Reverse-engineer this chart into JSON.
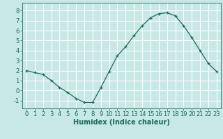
{
  "title": "",
  "xlabel": "Humidex (Indice chaleur)",
  "ylabel": "",
  "x": [
    0,
    1,
    2,
    3,
    4,
    5,
    6,
    7,
    8,
    9,
    10,
    11,
    12,
    13,
    14,
    15,
    16,
    17,
    18,
    19,
    20,
    21,
    22,
    23
  ],
  "y": [
    2.0,
    1.8,
    1.6,
    1.0,
    0.3,
    -0.2,
    -0.8,
    -1.2,
    -1.2,
    0.3,
    1.9,
    3.5,
    4.4,
    5.5,
    6.5,
    7.3,
    7.7,
    7.8,
    7.5,
    6.5,
    5.3,
    4.0,
    2.7,
    1.9
  ],
  "line_color": "#1a6b5a",
  "marker": "+",
  "bg_color": "#c8e8e5",
  "grid_color": "#ffffff",
  "ylim": [
    -1.8,
    8.8
  ],
  "xlim": [
    -0.5,
    23.5
  ],
  "yticks": [
    -1,
    0,
    1,
    2,
    3,
    4,
    5,
    6,
    7,
    8
  ],
  "xticks": [
    0,
    1,
    2,
    3,
    4,
    5,
    6,
    7,
    8,
    9,
    10,
    11,
    12,
    13,
    14,
    15,
    16,
    17,
    18,
    19,
    20,
    21,
    22,
    23
  ],
  "tick_label_fontsize": 6,
  "xlabel_fontsize": 7,
  "label_color": "#1a6b5a"
}
